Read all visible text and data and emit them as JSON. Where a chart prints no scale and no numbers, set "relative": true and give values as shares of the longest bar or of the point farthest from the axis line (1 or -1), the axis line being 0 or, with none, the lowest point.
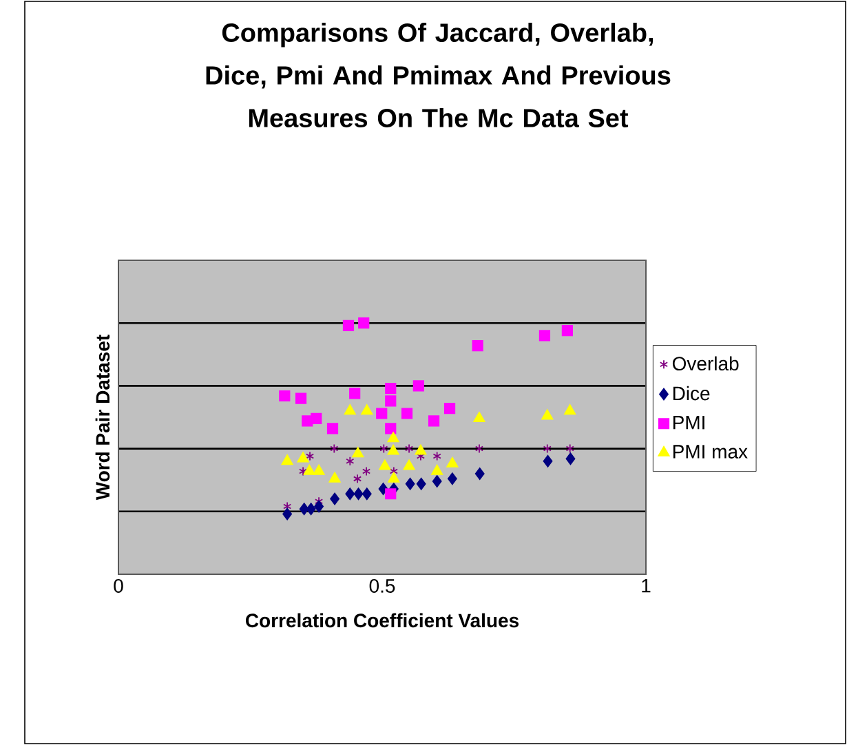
{
  "chart_data": {
    "type": "scatter",
    "title": "Comparisons Of  Jaccard, Overlab, Dice, Pmi  And Pmimax And Previous Measures On The Mc Data Set",
    "xlabel": "Correlation Coefficient Values",
    "ylabel": "Word Pair Dataset",
    "xlim": [
      0,
      1
    ],
    "xticks": [
      0,
      0.5,
      1
    ],
    "relative": true,
    "grid": "y",
    "legend": "right",
    "tick_labels": "x",
    "series": [
      {
        "name": "Overlab",
        "color": "#800080",
        "marker": "cross",
        "x": [
          0.32,
          0.35,
          0.363,
          0.38,
          0.409,
          0.439,
          0.453,
          0.47,
          0.503,
          0.522,
          0.551,
          0.573,
          0.604,
          0.684,
          0.813,
          0.856
        ],
        "values": [
          0.27,
          0.41,
          0.47,
          0.29,
          0.5,
          0.45,
          0.38,
          0.41,
          0.5,
          0.41,
          0.5,
          0.47,
          0.47,
          0.5,
          0.5,
          0.5
        ]
      },
      {
        "name": "Dice",
        "color": "#000080",
        "marker": "diamond",
        "x": [
          0.32,
          0.352,
          0.365,
          0.38,
          0.41,
          0.439,
          0.455,
          0.471,
          0.502,
          0.522,
          0.553,
          0.574,
          0.604,
          0.633,
          0.685,
          0.814,
          0.857
        ],
        "values": [
          0.24,
          0.26,
          0.26,
          0.27,
          0.3,
          0.32,
          0.32,
          0.32,
          0.34,
          0.34,
          0.36,
          0.36,
          0.37,
          0.38,
          0.4,
          0.45,
          0.46
        ]
      },
      {
        "name": "PMI",
        "color": "#ff00ff",
        "marker": "square",
        "x": [
          0.315,
          0.346,
          0.358,
          0.375,
          0.406,
          0.436,
          0.465,
          0.448,
          0.499,
          0.516,
          0.516,
          0.516,
          0.516,
          0.547,
          0.569,
          0.598,
          0.628,
          0.681,
          0.808,
          0.851
        ],
        "values": [
          0.71,
          0.7,
          0.61,
          0.62,
          0.58,
          0.99,
          1.0,
          0.72,
          0.64,
          0.74,
          0.69,
          0.58,
          0.32,
          0.64,
          0.75,
          0.61,
          0.66,
          0.91,
          0.95,
          0.97
        ]
      },
      {
        "name": "PMI max",
        "color": "#ffff00",
        "marker": "triangle",
        "x": [
          0.32,
          0.35,
          0.362,
          0.38,
          0.41,
          0.439,
          0.454,
          0.471,
          0.505,
          0.521,
          0.521,
          0.522,
          0.551,
          0.573,
          0.604,
          0.633,
          0.684,
          0.813,
          0.856
        ],
        "values": [
          0.45,
          0.46,
          0.41,
          0.41,
          0.38,
          0.65,
          0.48,
          0.65,
          0.43,
          0.54,
          0.49,
          0.38,
          0.43,
          0.49,
          0.41,
          0.44,
          0.62,
          0.63,
          0.65
        ]
      }
    ]
  }
}
